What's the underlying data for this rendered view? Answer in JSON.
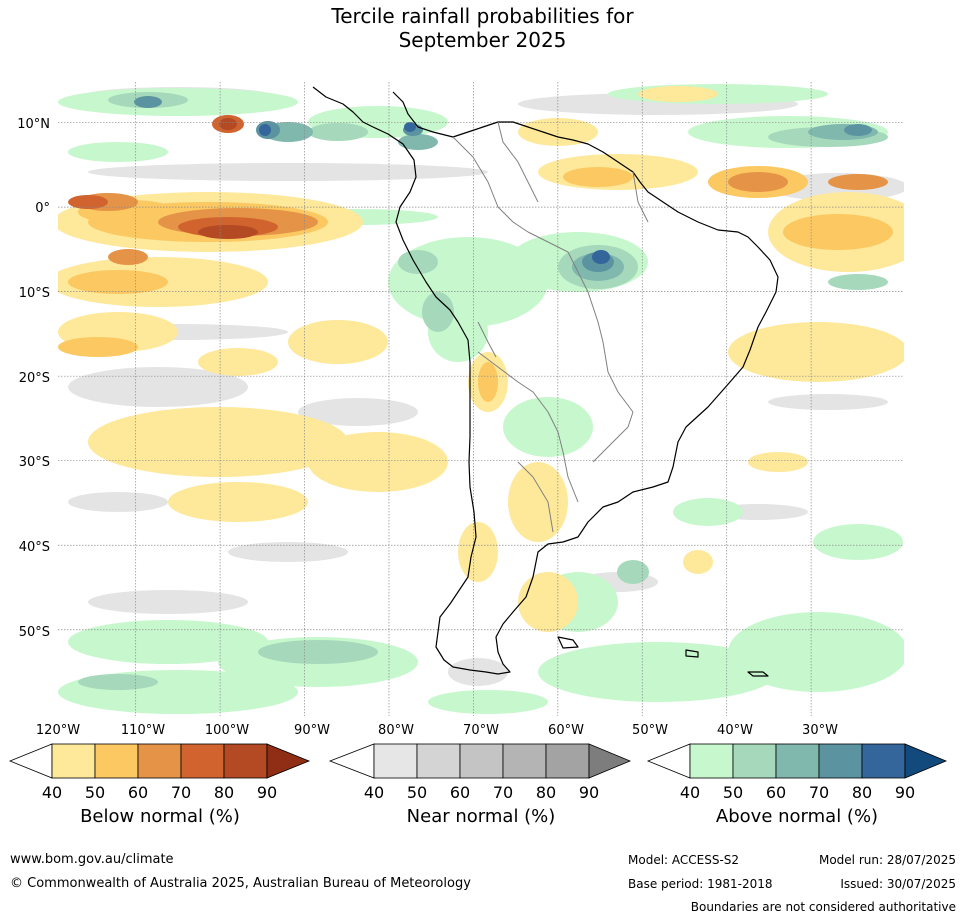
{
  "title": {
    "line1": "Tercile rainfall probabilities for",
    "line2": "September 2025"
  },
  "map": {
    "lat_labels": [
      "10°N",
      "0°",
      "10°S",
      "20°S",
      "30°S",
      "40°S",
      "50°S"
    ],
    "lat_values": [
      10,
      0,
      -10,
      -20,
      -30,
      -40,
      -50
    ],
    "lon_labels": [
      "120°W",
      "110°W",
      "100°W",
      "90°W",
      "80°W",
      "70°W",
      "60°W",
      "50°W",
      "40°W",
      "30°W"
    ],
    "lon_values": [
      -120,
      -110,
      -100,
      -90,
      -80,
      -70,
      -60,
      -50,
      -40,
      -30
    ],
    "extent": {
      "lon_min": -119.2,
      "lon_max": -19.0,
      "lat_min": -60.2,
      "lat_max": 14.8
    }
  },
  "legends": {
    "below": {
      "title": "Below normal (%)",
      "ticks": [
        "40",
        "50",
        "60",
        "70",
        "80",
        "90"
      ],
      "colors": [
        "#fee89a",
        "#fcc861",
        "#e59447",
        "#d0632e",
        "#b34a23",
        "#8f2e14"
      ]
    },
    "near": {
      "title": "Near normal (%)",
      "ticks": [
        "40",
        "50",
        "60",
        "70",
        "80",
        "90"
      ],
      "colors": [
        "#e6e6e6",
        "#d4d4d4",
        "#c4c4c4",
        "#b4b4b4",
        "#a3a3a3",
        "#7d7d7d"
      ]
    },
    "above": {
      "title": "Above normal (%)",
      "ticks": [
        "40",
        "50",
        "60",
        "70",
        "80",
        "90"
      ],
      "colors": [
        "#c7f7cd",
        "#a6d9bb",
        "#80b8ae",
        "#5b93a0",
        "#34669b",
        "#124a7e"
      ]
    }
  },
  "footer": {
    "website": "www.bom.gov.au/climate",
    "copyright": "© Commonwealth of Australia 2025, Australian Bureau of Meteorology",
    "model": "Model: ACCESS-S2",
    "base_period": "Base period: 1981-2018",
    "model_run": "Model run: 28/07/2025",
    "issued": "Issued: 30/07/2025",
    "disclaimer": "Boundaries are not considered authoritative"
  }
}
